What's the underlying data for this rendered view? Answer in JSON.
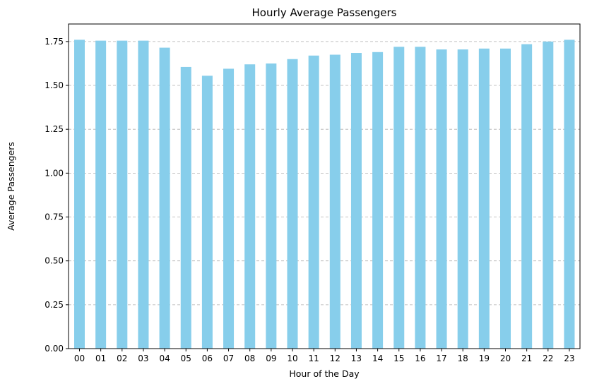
{
  "chart_data": {
    "type": "bar",
    "title": "Hourly Average Passengers",
    "xlabel": "Hour of the Day",
    "ylabel": "Average Passengers",
    "categories": [
      "00",
      "01",
      "02",
      "03",
      "04",
      "05",
      "06",
      "07",
      "08",
      "09",
      "10",
      "11",
      "12",
      "13",
      "14",
      "15",
      "16",
      "17",
      "18",
      "19",
      "20",
      "21",
      "22",
      "23"
    ],
    "values": [
      1.76,
      1.755,
      1.755,
      1.755,
      1.715,
      1.605,
      1.555,
      1.595,
      1.62,
      1.625,
      1.65,
      1.67,
      1.675,
      1.685,
      1.69,
      1.72,
      1.72,
      1.705,
      1.705,
      1.71,
      1.71,
      1.735,
      1.75,
      1.76
    ],
    "ylim": [
      0,
      1.85
    ],
    "yticks": [
      "0.00",
      "0.25",
      "0.50",
      "0.75",
      "1.00",
      "1.25",
      "1.50",
      "1.75"
    ],
    "grid": "y-dashed",
    "bar_color": "#87ceeb"
  }
}
